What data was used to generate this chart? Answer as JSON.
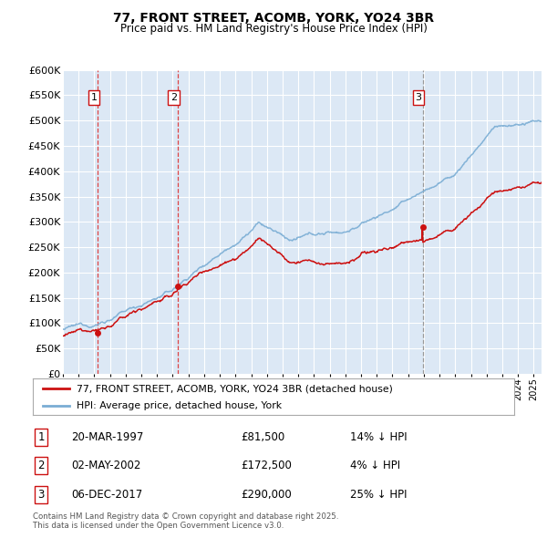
{
  "title": "77, FRONT STREET, ACOMB, YORK, YO24 3BR",
  "subtitle": "Price paid vs. HM Land Registry's House Price Index (HPI)",
  "ylim": [
    0,
    600000
  ],
  "yticks": [
    0,
    50000,
    100000,
    150000,
    200000,
    250000,
    300000,
    350000,
    400000,
    450000,
    500000,
    550000,
    600000
  ],
  "ytick_labels": [
    "£0",
    "£50K",
    "£100K",
    "£150K",
    "£200K",
    "£250K",
    "£300K",
    "£350K",
    "£400K",
    "£450K",
    "£500K",
    "£550K",
    "£600K"
  ],
  "background_color": "#ffffff",
  "plot_bg_color": "#dce8f5",
  "grid_color": "#ffffff",
  "hpi_line_color": "#7aadd4",
  "price_line_color": "#cc1111",
  "vline_red_color": "#dd4444",
  "vline_grey_color": "#999999",
  "purchases": [
    {
      "date_num": 1997.22,
      "price": 81500,
      "label": "1",
      "vline_style": "red"
    },
    {
      "date_num": 2002.33,
      "price": 172500,
      "label": "2",
      "vline_style": "red"
    },
    {
      "date_num": 2017.92,
      "price": 290000,
      "label": "3",
      "vline_style": "grey"
    }
  ],
  "legend_entries": [
    "77, FRONT STREET, ACOMB, YORK, YO24 3BR (detached house)",
    "HPI: Average price, detached house, York"
  ],
  "table_rows": [
    {
      "num": "1",
      "date": "20-MAR-1997",
      "price": "£81,500",
      "hpi": "14% ↓ HPI"
    },
    {
      "num": "2",
      "date": "02-MAY-2002",
      "price": "£172,500",
      "hpi": "4% ↓ HPI"
    },
    {
      "num": "3",
      "date": "06-DEC-2017",
      "price": "£290,000",
      "hpi": "25% ↓ HPI"
    }
  ],
  "footer": "Contains HM Land Registry data © Crown copyright and database right 2025.\nThis data is licensed under the Open Government Licence v3.0.",
  "xmin": 1995,
  "xmax": 2025.5
}
